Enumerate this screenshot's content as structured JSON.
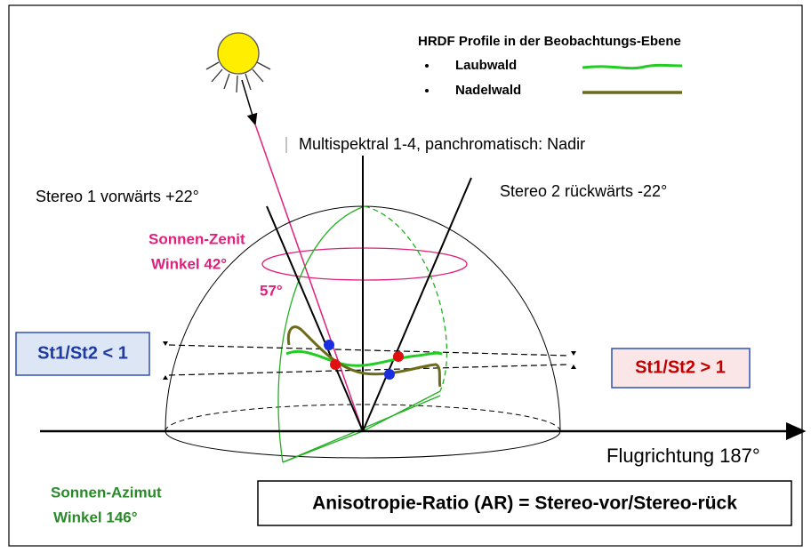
{
  "legend": {
    "title": "HRDF Profile in der Beobachtungs-Ebene",
    "items": [
      "Laubwald",
      "Nadelwald"
    ]
  },
  "labels": {
    "nadir": "Multispektral 1-4, panchromatisch: Nadir",
    "stereo1": "Stereo 1 vorwärts +22°",
    "stereo2": "Stereo 2 rückwärts -22°",
    "sun_zenith": [
      "Sonnen-Zenit",
      "Winkel 42°"
    ],
    "angle": "57°",
    "ratio_low": "St1/St2 < 1",
    "ratio_high": "St1/St2 > 1",
    "flight": "Flugrichtung 187°",
    "sun_azimuth": [
      "Sonnen-Azimut",
      "Winkel 146°"
    ],
    "formula": "Anisotropie-Ratio (AR) = Stereo-vor/Stereo-rück"
  }
}
